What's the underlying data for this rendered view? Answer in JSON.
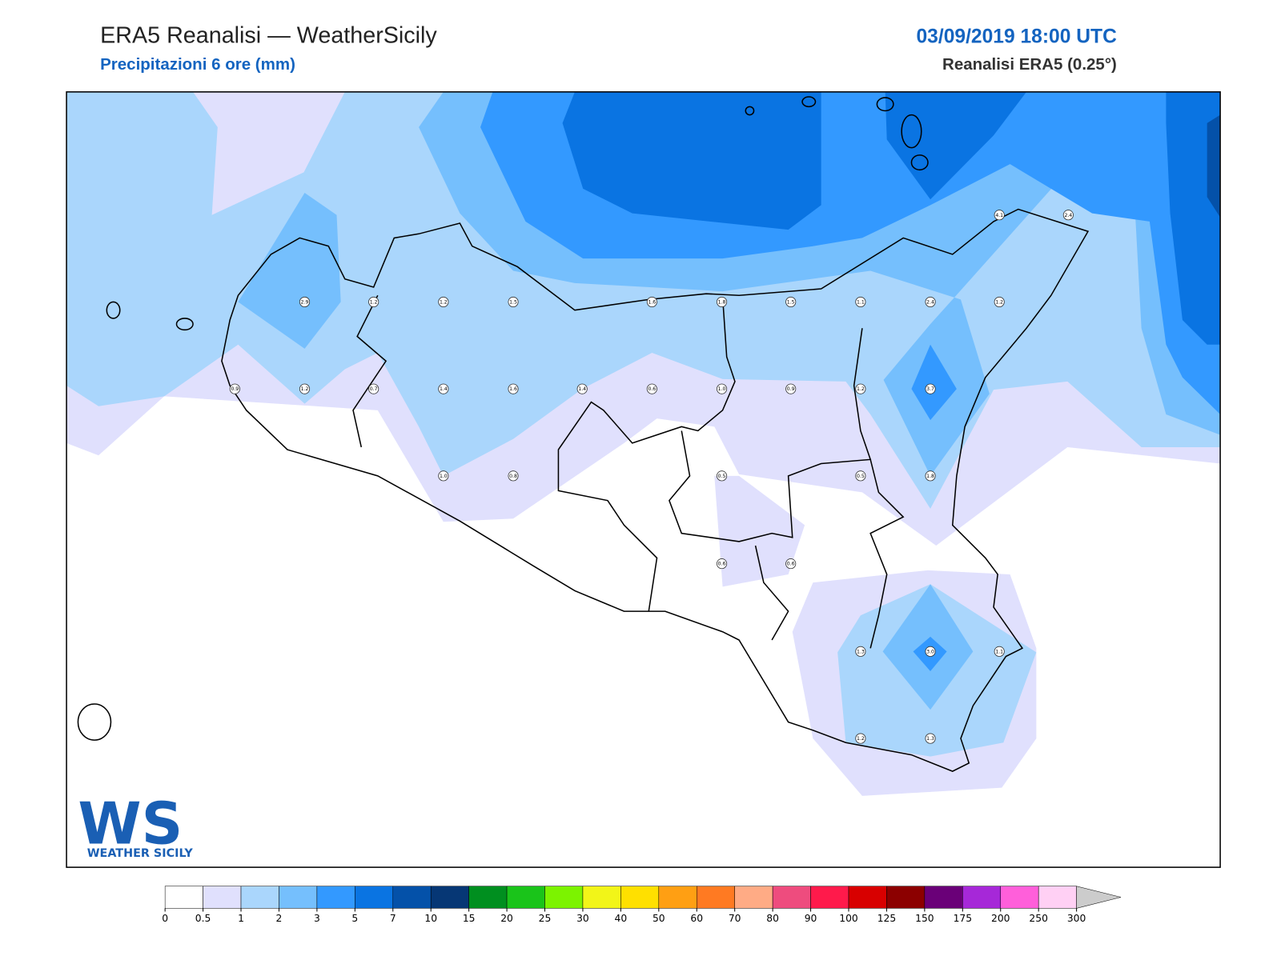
{
  "header": {
    "title": "ERA5 Reanalisi — WeatherSicily",
    "subtitle": "Precipitazioni 6 ore (mm)",
    "datetime": "03/09/2019 18:00 UTC",
    "source": "Reanalisi ERA5 (0.25°)"
  },
  "stations": [
    "2.9",
    "1.2",
    "1.2",
    "1.5",
    "1.6",
    "1.8",
    "1.5",
    "1.1",
    "2.4",
    "1.2",
    "4.1",
    "2.4",
    "0.9",
    "1.2",
    "0.7",
    "1.4",
    "1.6",
    "1.4",
    "0.6",
    "1.0",
    "0.9",
    "1.2",
    "3.7",
    "1.0",
    "0.8",
    "0.5",
    "0.5",
    "1.8",
    "0.6",
    "0.6",
    "1.3",
    "3.0",
    "1.1",
    "1.2",
    "1.3"
  ],
  "logo": {
    "mark": "WS",
    "name": "WEATHER SICILY"
  },
  "legend": {
    "ticks": [
      0,
      0.5,
      1,
      2,
      3,
      5,
      7,
      10,
      15,
      20,
      25,
      30,
      40,
      50,
      60,
      70,
      80,
      90,
      100,
      125,
      150,
      175,
      200,
      250,
      300
    ],
    "colors": [
      "#ffffff",
      "#e0e0fd",
      "#aad6fc",
      "#75bffd",
      "#3399ff",
      "#0a74e2",
      "#0451a9",
      "#063775",
      "#008f1f",
      "#1ac41a",
      "#7cf300",
      "#f2f518",
      "#ffe000",
      "#ff9f13",
      "#ff7a22",
      "#ffab85",
      "#ee4c7e",
      "#ff1a4b",
      "#d80000",
      "#8c0000",
      "#6a0078",
      "#a628d8",
      "#ff5fda",
      "#ffd0f4"
    ],
    "over_color": "#cccccc"
  }
}
